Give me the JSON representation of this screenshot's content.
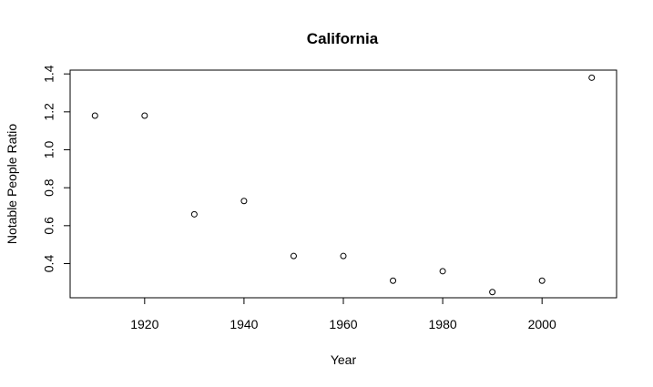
{
  "chart_data": {
    "type": "scatter",
    "title": "California",
    "xlabel": "Year",
    "ylabel": "Notable People Ratio",
    "xlim": [
      1905,
      2015
    ],
    "ylim": [
      0.22,
      1.42
    ],
    "xticks": [
      1920,
      1940,
      1960,
      1980,
      2000
    ],
    "yticks": [
      0.4,
      0.6,
      0.8,
      1.0,
      1.2,
      1.4
    ],
    "xtick_labels": [
      "1920",
      "1940",
      "1960",
      "1980",
      "2000"
    ],
    "ytick_labels": [
      "0.4",
      "0.6",
      "0.8",
      "1.0",
      "1.2",
      "1.4"
    ],
    "grid": false,
    "legend": "none",
    "marker": "open-circle",
    "points": [
      {
        "x": 1910,
        "y": 1.18
      },
      {
        "x": 1920,
        "y": 1.18
      },
      {
        "x": 1930,
        "y": 0.66
      },
      {
        "x": 1940,
        "y": 0.73
      },
      {
        "x": 1950,
        "y": 0.44
      },
      {
        "x": 1960,
        "y": 0.44
      },
      {
        "x": 1970,
        "y": 0.31
      },
      {
        "x": 1980,
        "y": 0.36
      },
      {
        "x": 1990,
        "y": 0.25
      },
      {
        "x": 2000,
        "y": 0.31
      },
      {
        "x": 2010,
        "y": 1.38
      }
    ]
  }
}
